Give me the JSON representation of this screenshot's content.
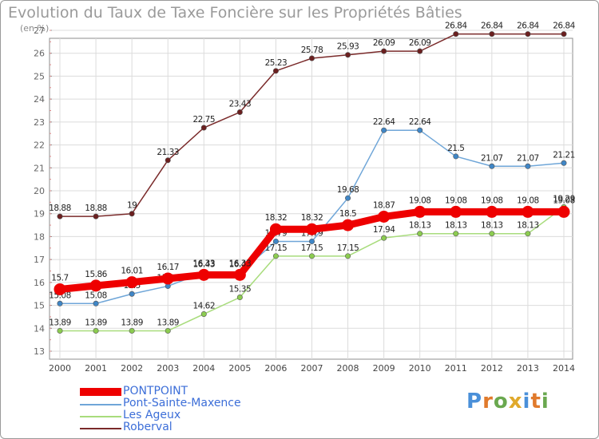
{
  "chart_data": {
    "type": "line",
    "title": "Evolution du Taux de Taxe Foncière sur les Propriétés Bâties",
    "ylabel": "(en %)",
    "xlabel": "",
    "categories": [
      "2000",
      "2001",
      "2002",
      "2003",
      "2004",
      "2005",
      "2006",
      "2007",
      "2008",
      "2009",
      "2010",
      "2011",
      "2012",
      "2013",
      "2014"
    ],
    "ylim": [
      13,
      27
    ],
    "yticks": [
      13,
      14,
      15,
      16,
      17,
      18,
      19,
      20,
      21,
      22,
      23,
      24,
      25,
      26,
      27
    ],
    "grid": true,
    "series": [
      {
        "name": "Roberval",
        "color": "#7a2a2a",
        "marker": "#6b1f1f",
        "width": 1.5,
        "values": [
          18.88,
          18.88,
          19,
          21.33,
          22.75,
          23.43,
          25.23,
          25.78,
          25.93,
          26.09,
          26.09,
          26.84,
          26.84,
          26.84,
          26.84
        ],
        "labels": [
          "18.88",
          "18.88",
          "19",
          "21.33",
          "22.75",
          "23.43",
          "25.23",
          "25.78",
          "25.93",
          "26.09",
          "26.09",
          "26.84",
          "26.84",
          "26.84",
          "26.84"
        ]
      },
      {
        "name": "Pont-Sainte-Maxence",
        "color": "#6fa6d8",
        "marker": "#3f86c6",
        "width": 1.5,
        "values": [
          15.08,
          15.08,
          15.5,
          15.84,
          16.43,
          16.43,
          17.79,
          17.79,
          19.68,
          22.64,
          22.64,
          21.5,
          21.07,
          21.07,
          21.21
        ],
        "labels": [
          "15.08",
          "15.08",
          "15.5",
          "15.84",
          "16.43",
          "16.43",
          "17.79",
          "17.79",
          "19.68",
          "22.64",
          "22.64",
          "21.5",
          "21.07",
          "21.07",
          "21.21"
        ]
      },
      {
        "name": "Les Ageux",
        "color": "#a8dc7c",
        "marker": "#8ccc50",
        "width": 1.5,
        "values": [
          13.89,
          13.89,
          13.89,
          13.89,
          14.62,
          15.35,
          17.15,
          17.15,
          17.15,
          17.94,
          18.13,
          18.13,
          18.13,
          18.13,
          19.29
        ],
        "labels": [
          "13.89",
          "13.89",
          "13.89",
          "13.89",
          "14.62",
          "15.35",
          "17.15",
          "17.15",
          "17.15",
          "17.94",
          "18.13",
          "18.13",
          "18.13",
          "18.13",
          "19.29"
        ]
      },
      {
        "name": "PONTPOINT",
        "color": "#ee0000",
        "marker": "#ee0000",
        "width": 9,
        "values": [
          15.7,
          15.86,
          16.01,
          16.17,
          16.33,
          16.33,
          18.32,
          18.32,
          18.5,
          18.87,
          19.08,
          19.08,
          19.08,
          19.08,
          19.08
        ],
        "labels": [
          "15.7",
          "15.86",
          "16.01",
          "16.17",
          "16.33",
          "16.33",
          "18.32",
          "18.32",
          "18.5",
          "18.87",
          "19.08",
          "19.08",
          "19.08",
          "19.08",
          "19.08"
        ]
      }
    ]
  },
  "legend": [
    {
      "name": "PONTPOINT",
      "color": "#ee0000"
    },
    {
      "name": "Pont-Sainte-Maxence",
      "color": "#6fa6d8"
    },
    {
      "name": "Les Ageux",
      "color": "#a8dc7c"
    },
    {
      "name": "Roberval",
      "color": "#7a2a2a"
    }
  ],
  "logo": {
    "letters": [
      "P",
      "r",
      "o",
      "x",
      "i",
      "t",
      "i"
    ],
    "colors": [
      "#4a90d9",
      "#e07a2c",
      "#6aa84f",
      "#e0a92c",
      "#4a90d9",
      "#e07a2c",
      "#6aa84f"
    ]
  }
}
